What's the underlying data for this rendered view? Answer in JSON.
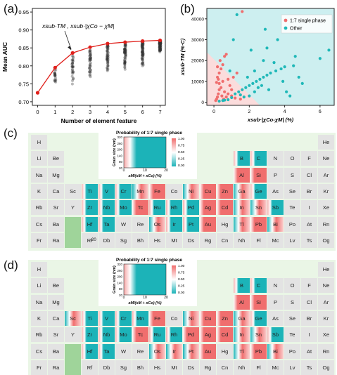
{
  "panels": {
    "a": {
      "label": "(a)"
    },
    "b": {
      "label": "(b)"
    },
    "c": {
      "label": "(c)"
    },
    "d": {
      "label": "(d)"
    }
  },
  "chart_data": [
    {
      "type": "scatter",
      "panel": "a",
      "ylabel": "Mean AUC",
      "xlabel": "Number of element feature",
      "xlim": [
        -0.3,
        7.3
      ],
      "ylim": [
        0.69,
        0.96
      ],
      "xticks": [
        "0",
        "1",
        "2",
        "3",
        "4",
        "5",
        "6",
        "7"
      ],
      "yticks": [
        "0.70",
        "0.75",
        "0.80",
        "0.85",
        "0.90",
        "0.95"
      ],
      "ytick_values": [
        0.7,
        0.75,
        0.8,
        0.85,
        0.9,
        0.95
      ],
      "annotation": "xsub·TM ,  xsub·|χCo − χM|",
      "best_line": {
        "x": [
          0,
          1,
          2,
          3,
          4,
          5,
          6,
          7
        ],
        "y": [
          0.725,
          0.795,
          0.836,
          0.852,
          0.862,
          0.866,
          0.869,
          0.871
        ],
        "color": "#e0201b"
      },
      "cloud": {
        "x": [
          1,
          2,
          3,
          4,
          5,
          6,
          7
        ],
        "min": [
          0.745,
          0.745,
          0.765,
          0.775,
          0.79,
          0.8,
          0.835
        ],
        "max": [
          0.79,
          0.83,
          0.848,
          0.86,
          0.866,
          0.869,
          0.87
        ],
        "color": "#333333"
      }
    },
    {
      "type": "scatter",
      "panel": "b",
      "xlabel": "xsub·|χCo-χM| (%)",
      "ylabel": "xsub·TM (%·C)",
      "xlim": [
        -0.4,
        6.8
      ],
      "ylim": [
        -1500,
        45000
      ],
      "xticks": [
        "0",
        "2",
        "4",
        "6"
      ],
      "xtick_values": [
        0,
        2,
        4,
        6
      ],
      "yticks": [
        "0",
        "10000",
        "20000",
        "30000",
        "40000"
      ],
      "ytick_values": [
        0,
        10000,
        20000,
        30000,
        40000
      ],
      "legend": {
        "position": "top-right"
      },
      "regions": {
        "pink": "#fbdcdc",
        "cyan": "#cdeff0"
      },
      "series": [
        {
          "name": "1:7 single phase",
          "color": "#ef6e6e",
          "points": [
            [
              0.1,
              800
            ],
            [
              0.15,
              1500
            ],
            [
              0.2,
              2500
            ],
            [
              0.25,
              4000
            ],
            [
              0.3,
              6000
            ],
            [
              0.3,
              9000
            ],
            [
              0.2,
              12000
            ],
            [
              0.3,
              14000
            ],
            [
              0.4,
              16000
            ],
            [
              0.5,
              18000
            ],
            [
              0.6,
              22000
            ],
            [
              0.7,
              23000
            ],
            [
              0.5,
              10000
            ],
            [
              0.4,
              7000
            ],
            [
              0.6,
              5000
            ],
            [
              0.8,
              4000
            ],
            [
              1.0,
              3000
            ],
            [
              1.2,
              2000
            ],
            [
              0.9,
              8000
            ],
            [
              1.1,
              12000
            ],
            [
              1.3,
              14000
            ],
            [
              0.35,
              20000
            ],
            [
              0.25,
              11000
            ],
            [
              0.45,
              3000
            ],
            [
              0.55,
              1500
            ],
            [
              0.7,
              2500
            ],
            [
              0.2,
              17000
            ],
            [
              1.5,
              1500
            ],
            [
              0.8,
              11000
            ],
            [
              1.6,
              43500
            ],
            [
              1.0,
              6000
            ],
            [
              0.15,
              9500
            ]
          ]
        },
        {
          "name": "Other",
          "color": "#1fb8b8",
          "points": [
            [
              0.3,
              500
            ],
            [
              0.5,
              800
            ],
            [
              0.8,
              1200
            ],
            [
              1.0,
              2200
            ],
            [
              1.2,
              4000
            ],
            [
              1.4,
              5000
            ],
            [
              1.6,
              6000
            ],
            [
              1.8,
              7000
            ],
            [
              2.0,
              8000
            ],
            [
              2.2,
              9000
            ],
            [
              2.4,
              10000
            ],
            [
              2.6,
              11000
            ],
            [
              2.8,
              12000
            ],
            [
              3.0,
              13000
            ],
            [
              3.2,
              14000
            ],
            [
              3.5,
              15000
            ],
            [
              3.8,
              16000
            ],
            [
              4.0,
              17000
            ],
            [
              4.5,
              17500
            ],
            [
              2.0,
              3000
            ],
            [
              2.3,
              5000
            ],
            [
              2.5,
              7000
            ],
            [
              1.5,
              3500
            ],
            [
              1.9,
              12000
            ],
            [
              2.3,
              15000
            ],
            [
              2.8,
              20000
            ],
            [
              3.0,
              26000
            ],
            [
              3.4,
              19000
            ],
            [
              3.6,
              30000
            ],
            [
              4.1,
              5000
            ],
            [
              4.3,
              3000
            ],
            [
              4.6,
              22000
            ],
            [
              5.0,
              9000
            ],
            [
              6.0,
              21000
            ],
            [
              6.5,
              25000
            ],
            [
              1.3,
              42000
            ],
            [
              2.9,
              35000
            ],
            [
              1.1,
              30000
            ],
            [
              0.6,
              1000
            ],
            [
              1.7,
              2500
            ],
            [
              2.7,
              8000
            ],
            [
              3.1,
              6000
            ],
            [
              0.9,
              15000
            ],
            [
              2.1,
              25000
            ],
            [
              3.9,
              10000
            ],
            [
              4.8,
              12000
            ]
          ]
        }
      ]
    }
  ],
  "periodic_c": {
    "inset": {
      "title": "Probability of 1:7 single phase",
      "ylabel": "Grain size (nm)",
      "xlabel": "xM/(xM + xCo) (%)",
      "yticks": [
        "20",
        "80",
        "140",
        "200",
        "260",
        "320"
      ],
      "xticks": [
        "0",
        "10",
        "20"
      ],
      "cbar": [
        "1.00",
        "0.75",
        "0.50",
        "0.25",
        "0.00"
      ]
    },
    "stray_label": "20"
  },
  "periodic_d": {
    "inset": {
      "title": "Probability of 1:7 single phase",
      "ylabel": "Grain size (nm)",
      "xlabel": "xM/(xM + xCo) (%)",
      "yticks": [
        "20",
        "80",
        "140",
        "200",
        "260",
        "320"
      ],
      "xticks": [
        "0",
        "10",
        "20"
      ],
      "cbar": [
        "1.00",
        "0.75",
        "0.50",
        "0.25",
        "0.00"
      ]
    }
  },
  "elements": [
    [
      "H",
      1,
      1
    ],
    [
      "He",
      1,
      18
    ],
    [
      "Li",
      2,
      1
    ],
    [
      "Be",
      2,
      2
    ],
    [
      "B",
      2,
      13
    ],
    [
      "C",
      2,
      14
    ],
    [
      "N",
      2,
      15
    ],
    [
      "O",
      2,
      16
    ],
    [
      "F",
      2,
      17
    ],
    [
      "Ne",
      2,
      18
    ],
    [
      "Na",
      3,
      1
    ],
    [
      "Mg",
      3,
      2
    ],
    [
      "Al",
      3,
      13
    ],
    [
      "Si",
      3,
      14
    ],
    [
      "P",
      3,
      15
    ],
    [
      "S",
      3,
      16
    ],
    [
      "Cl",
      3,
      17
    ],
    [
      "Ar",
      3,
      18
    ],
    [
      "K",
      4,
      1
    ],
    [
      "Ca",
      4,
      2
    ],
    [
      "Sc",
      4,
      3
    ],
    [
      "Ti",
      4,
      4
    ],
    [
      "V",
      4,
      5
    ],
    [
      "Cr",
      4,
      6
    ],
    [
      "Mn",
      4,
      7
    ],
    [
      "Fe",
      4,
      8
    ],
    [
      "Co",
      4,
      9
    ],
    [
      "Ni",
      4,
      10
    ],
    [
      "Cu",
      4,
      11
    ],
    [
      "Zn",
      4,
      12
    ],
    [
      "Ga",
      4,
      13
    ],
    [
      "Ge",
      4,
      14
    ],
    [
      "As",
      4,
      15
    ],
    [
      "Se",
      4,
      16
    ],
    [
      "Br",
      4,
      17
    ],
    [
      "Kr",
      4,
      18
    ],
    [
      "Rb",
      5,
      1
    ],
    [
      "Sr",
      5,
      2
    ],
    [
      "Y",
      5,
      3
    ],
    [
      "Zr",
      5,
      4
    ],
    [
      "Nb",
      5,
      5
    ],
    [
      "Mo",
      5,
      6
    ],
    [
      "Tc",
      5,
      7
    ],
    [
      "Ru",
      5,
      8
    ],
    [
      "Rh",
      5,
      9
    ],
    [
      "Pd",
      5,
      10
    ],
    [
      "Ag",
      5,
      11
    ],
    [
      "Cd",
      5,
      12
    ],
    [
      "In",
      5,
      13
    ],
    [
      "Sn",
      5,
      14
    ],
    [
      "Sb",
      5,
      15
    ],
    [
      "Te",
      5,
      16
    ],
    [
      "I",
      5,
      17
    ],
    [
      "Xe",
      5,
      18
    ],
    [
      "Cs",
      6,
      1
    ],
    [
      "Ba",
      6,
      2
    ],
    [
      "Hf",
      6,
      4
    ],
    [
      "Ta",
      6,
      5
    ],
    [
      "W",
      6,
      6
    ],
    [
      "Re",
      6,
      7
    ],
    [
      "Os",
      6,
      8
    ],
    [
      "Ir",
      6,
      9
    ],
    [
      "Pt",
      6,
      10
    ],
    [
      "Au",
      6,
      11
    ],
    [
      "Hg",
      6,
      12
    ],
    [
      "Tl",
      6,
      13
    ],
    [
      "Pb",
      6,
      14
    ],
    [
      "Bi",
      6,
      15
    ],
    [
      "Po",
      6,
      16
    ],
    [
      "At",
      6,
      17
    ],
    [
      "Rn",
      6,
      18
    ],
    [
      "Fr",
      7,
      1
    ],
    [
      "Ra",
      7,
      2
    ],
    [
      "Rf",
      7,
      4
    ],
    [
      "Db",
      7,
      5
    ],
    [
      "Sg",
      7,
      6
    ],
    [
      "Bh",
      7,
      7
    ],
    [
      "Hs",
      7,
      8
    ],
    [
      "Mt",
      7,
      9
    ],
    [
      "Ds",
      7,
      10
    ],
    [
      "Rg",
      7,
      11
    ],
    [
      "Cn",
      7,
      12
    ],
    [
      "Nh",
      7,
      13
    ],
    [
      "Fl",
      7,
      14
    ],
    [
      "Mc",
      7,
      15
    ],
    [
      "Lv",
      7,
      16
    ],
    [
      "Ts",
      7,
      17
    ],
    [
      "Og",
      7,
      18
    ]
  ],
  "heat_c": {
    "Ti": "c",
    "V": "c",
    "Cr": "c",
    "Mn": "m",
    "Fe": "r",
    "Ni": "m",
    "Cu": "r",
    "Zn": "r",
    "Ga": "m",
    "Ge": "c",
    "B": "c",
    "C": "c",
    "Al": "r",
    "Si": "r",
    "Zr": "c",
    "Nb": "c",
    "Mo": "c",
    "Tc": "r",
    "Ru": "c",
    "Rh": "c",
    "Pd": "c",
    "Ag": "r",
    "Cd": "r",
    "In": "m",
    "Sn": "m",
    "Sb": "c",
    "Hf": "c",
    "Ta": "c",
    "Os": "m",
    "Ir": "c",
    "Pt": "c",
    "Au": "r",
    "Tl": "m",
    "Pb": "r",
    "Bi": "m"
  },
  "heat_d": {
    "Sc": "m",
    "Ti": "c",
    "V": "c",
    "Cr": "c",
    "Mn": "c",
    "Fe": "r",
    "Ni": "m",
    "Cu": "r",
    "Zn": "r",
    "Ga": "m",
    "Ge": "c",
    "B": "c",
    "C": "c",
    "Al": "r",
    "Si": "r",
    "Zr": "c",
    "Nb": "c",
    "Mo": "c",
    "Tc": "r",
    "Ru": "c",
    "Rh": "c",
    "Pd": "r",
    "Ag": "r",
    "Cd": "r",
    "In": "m",
    "Sn": "m",
    "Sb": "c",
    "Hf": "c",
    "Ta": "c",
    "Os": "m",
    "Ir": "m",
    "Pt": "m",
    "Au": "r",
    "Tl": "m",
    "Pb": "r",
    "Bi": "m"
  },
  "colors": {
    "red": "#f06e6e",
    "cyan": "#1cb3b8",
    "grey": "#e3e3e3",
    "green": "#eaf6e6",
    "darkgreen": "#9fd49a"
  }
}
